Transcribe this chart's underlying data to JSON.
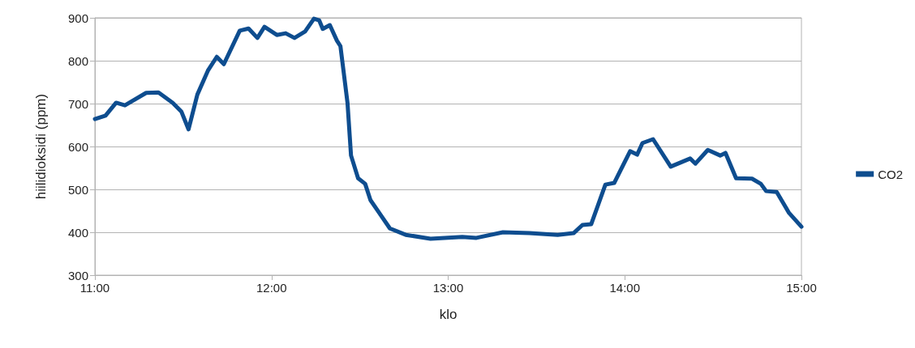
{
  "chart_data": {
    "type": "line",
    "xlabel": "klo",
    "ylabel": "hiilidioksidi (ppm)",
    "x": [
      11.0,
      11.06,
      11.12,
      11.17,
      11.29,
      11.36,
      11.44,
      11.49,
      11.53,
      11.58,
      11.64,
      11.69,
      11.73,
      11.82,
      11.87,
      11.92,
      11.96,
      12.03,
      12.08,
      12.13,
      12.19,
      12.24,
      12.27,
      12.29,
      12.33,
      12.37,
      12.39,
      12.43,
      12.45,
      12.49,
      12.53,
      12.56,
      12.61,
      12.67,
      12.76,
      12.9,
      13.08,
      13.16,
      13.31,
      13.46,
      13.62,
      13.71,
      13.76,
      13.81,
      13.89,
      13.94,
      14.03,
      14.07,
      14.1,
      14.16,
      14.26,
      14.37,
      14.4,
      14.47,
      14.54,
      14.57,
      14.63,
      14.72,
      14.77,
      14.8,
      14.86,
      14.93,
      15.0
    ],
    "series": [
      {
        "name": "CO2",
        "color": "#0e4d8f",
        "values": [
          664,
          672,
          702,
          696,
          725,
          726,
          702,
          681,
          640,
          721,
          777,
          809,
          792,
          870,
          875,
          853,
          879,
          860,
          864,
          853,
          868,
          898,
          894,
          874,
          883,
          847,
          834,
          702,
          579,
          526,
          513,
          475,
          445,
          409,
          394,
          385,
          389,
          387,
          400,
          398,
          394,
          398,
          417,
          419,
          511,
          515,
          589,
          581,
          608,
          617,
          553,
          572,
          560,
          592,
          579,
          585,
          526,
          525,
          513,
          496,
          494,
          445,
          413
        ]
      }
    ],
    "xlim": [
      11,
      15
    ],
    "xticks": [
      {
        "value": 11,
        "label": "11:00"
      },
      {
        "value": 12,
        "label": "12:00"
      },
      {
        "value": 13,
        "label": "13:00"
      },
      {
        "value": 14,
        "label": "14:00"
      },
      {
        "value": 15,
        "label": "15:00"
      }
    ],
    "ylim": [
      300,
      900
    ],
    "yticks": [
      300,
      400,
      500,
      600,
      700,
      800,
      900
    ],
    "grid": "y",
    "legend": "right",
    "marker": "none",
    "line_style": "solid"
  }
}
